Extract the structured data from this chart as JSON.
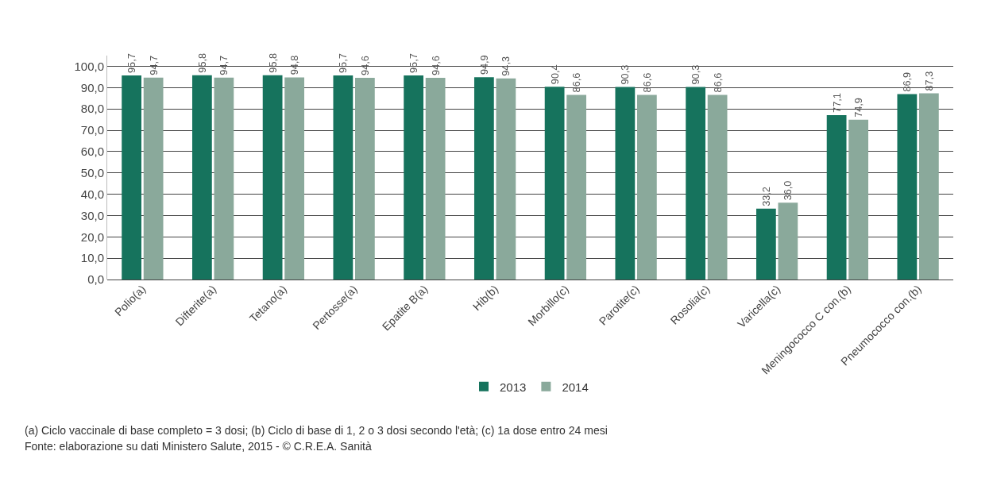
{
  "chart_data": {
    "type": "bar",
    "categories": [
      "Polio(a)",
      "Difterite(a)",
      "Tetano(a)",
      "Pertosse(a)",
      "Epatite B(a)",
      "Hib(b)",
      "Morbillo(c)",
      "Parotite(c)",
      "Rosolia(c)",
      "Varicella(c)",
      "Meningococco C con.(b)",
      "Pneumococco con.(b)"
    ],
    "series": [
      {
        "name": "2013",
        "color": "#16735d",
        "values": [
          95.7,
          95.8,
          95.8,
          95.7,
          95.7,
          94.9,
          90.4,
          90.3,
          90.3,
          33.2,
          77.1,
          86.9
        ],
        "value_labels": [
          "95,7",
          "95,8",
          "95,8",
          "95,7",
          "95,7",
          "94,9",
          "90,4",
          "90,3",
          "90,3",
          "33,2",
          "77,1",
          "86,9"
        ]
      },
      {
        "name": "2014",
        "color": "#8aa99b",
        "values": [
          94.7,
          94.7,
          94.8,
          94.6,
          94.6,
          94.3,
          86.6,
          86.6,
          86.6,
          36.0,
          74.9,
          87.3
        ],
        "value_labels": [
          "94,7",
          "94,7",
          "94,8",
          "94,6",
          "94,6",
          "94,3",
          "86,6",
          "86,6",
          "86,6",
          "36,0",
          "74,9",
          "87,3"
        ]
      }
    ],
    "ylim": [
      0,
      105
    ],
    "yticks": [
      {
        "value": 0,
        "label": "0,0"
      },
      {
        "value": 10,
        "label": "10,0"
      },
      {
        "value": 20,
        "label": "20,0"
      },
      {
        "value": 30,
        "label": "30,0"
      },
      {
        "value": 40,
        "label": "40,0"
      },
      {
        "value": 50,
        "label": "50,0"
      },
      {
        "value": 60,
        "label": "60,0"
      },
      {
        "value": 70,
        "label": "70,0"
      },
      {
        "value": 80,
        "label": "80,0"
      },
      {
        "value": 90,
        "label": "90,0"
      },
      {
        "value": 100,
        "label": "100,0"
      }
    ],
    "grid": "y",
    "legend": "bottom",
    "annotations": [
      "(a) Ciclo vaccinale di base completo = 3 dosi; (b) Ciclo di base di 1, 2 o 3 dosi secondo l'età; (c) 1a dose entro 24 mesi",
      "Fonte: elaborazione su dati Ministero Salute, 2015 - © C.R.E.A. Sanità"
    ]
  }
}
